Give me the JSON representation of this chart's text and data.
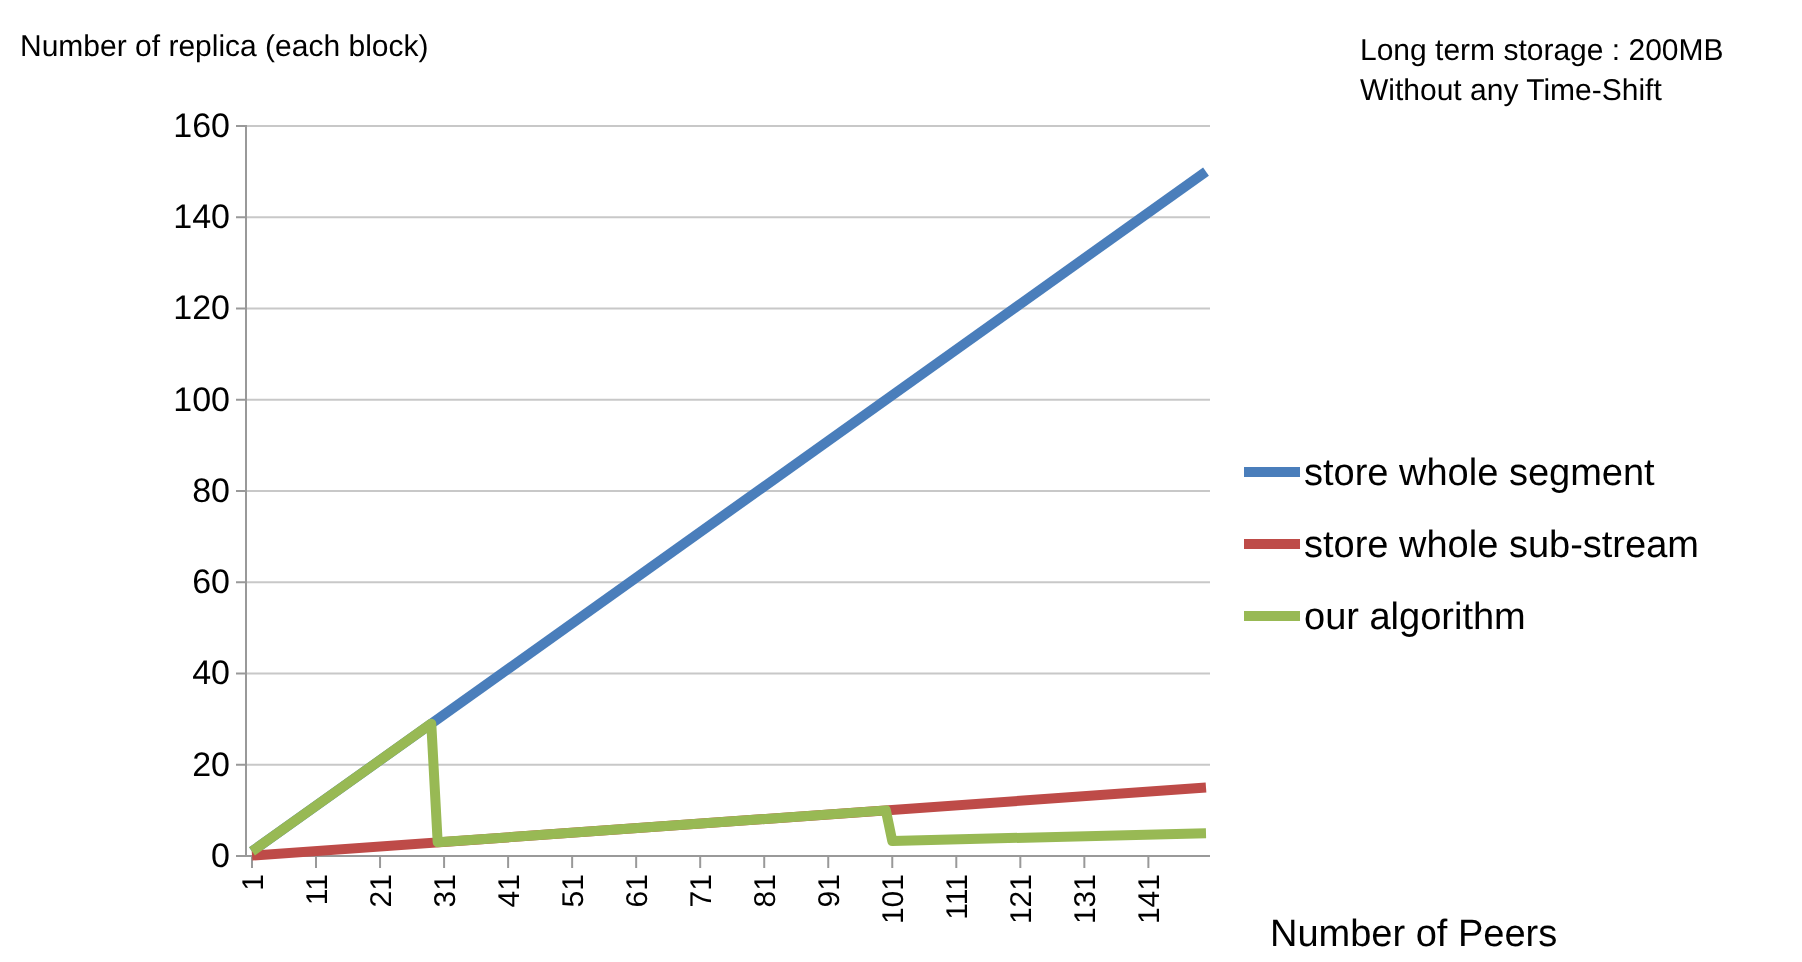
{
  "chart_data": {
    "type": "line",
    "ylabel": "Number of replica (each block)",
    "xlabel": "Number of Peers",
    "annotations": [
      "Long term storage : 200MB\nWithout any Time-Shift"
    ],
    "xlim": [
      1,
      150
    ],
    "xticks": [
      1,
      11,
      21,
      31,
      41,
      51,
      61,
      71,
      81,
      91,
      101,
      111,
      121,
      131,
      141
    ],
    "ylim": [
      0,
      160
    ],
    "yticks": [
      0,
      20,
      40,
      60,
      80,
      100,
      120,
      140,
      160
    ],
    "grid": "y",
    "legend": "right",
    "line_style": "solid",
    "series": [
      {
        "name": "store whole segment",
        "color": "#4a7ebb",
        "x": [
          1,
          150
        ],
        "values": [
          1,
          150
        ]
      },
      {
        "name": "store whole sub-stream",
        "color": "#be4b48",
        "x": [
          1,
          150
        ],
        "values": [
          0.1,
          15
        ]
      },
      {
        "name": "our algorithm",
        "color": "#98b954",
        "x": [
          1,
          29,
          30,
          100,
          101,
          150
        ],
        "values": [
          1,
          29,
          3,
          10,
          3.3,
          5
        ]
      }
    ]
  }
}
